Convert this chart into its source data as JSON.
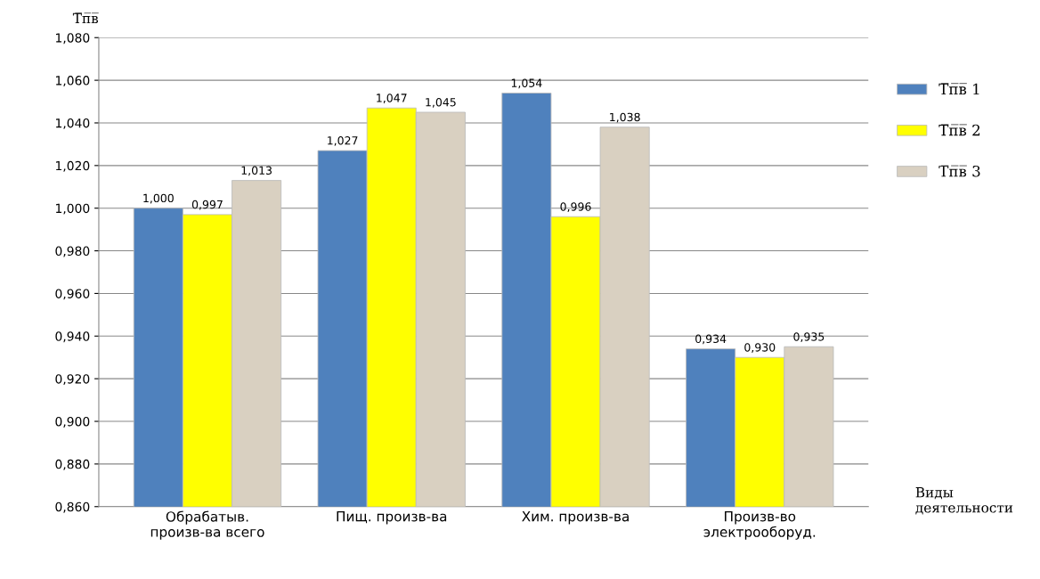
{
  "chart_data": {
    "type": "bar",
    "ylabel": "Т̅п̅в̅",
    "xlabel": "Виды\nдеятельности",
    "categories": [
      "Обрабатыв.\nпроизв-ва всего",
      "Пищ. произв-ва",
      "Хим. произв-ва",
      "Произв-во\nэлектрооборуд."
    ],
    "series": [
      {
        "name": "Т̅п̅в̅ 1",
        "color": "#4f81bd",
        "values": [
          1.0,
          1.027,
          1.054,
          0.934
        ],
        "value_labels": [
          "1,000",
          "1,027",
          "1,054",
          "0,934"
        ]
      },
      {
        "name": "Т̅п̅в̅ 2",
        "color": "#ffff00",
        "values": [
          0.997,
          1.047,
          0.996,
          0.93
        ],
        "value_labels": [
          "0,997",
          "1,047",
          "0,996",
          "0,930"
        ]
      },
      {
        "name": "Т̅п̅в̅ 3",
        "color": "#d9d0c1",
        "values": [
          1.013,
          1.045,
          1.038,
          0.935
        ],
        "value_labels": [
          "1,013",
          "1,045",
          "1,038",
          "0,935"
        ]
      }
    ],
    "ylim": [
      0.86,
      1.08
    ],
    "yticks": [
      {
        "value": 0.86,
        "label": "0,860"
      },
      {
        "value": 0.88,
        "label": "0,880"
      },
      {
        "value": 0.9,
        "label": "0,900"
      },
      {
        "value": 0.92,
        "label": "0,920"
      },
      {
        "value": 0.94,
        "label": "0,940"
      },
      {
        "value": 0.96,
        "label": "0,960"
      },
      {
        "value": 0.98,
        "label": "0,980"
      },
      {
        "value": 1.0,
        "label": "1,000"
      },
      {
        "value": 1.02,
        "label": "1,020"
      },
      {
        "value": 1.04,
        "label": "1,040"
      },
      {
        "value": 1.06,
        "label": "1,060"
      },
      {
        "value": 1.08,
        "label": "1,080"
      }
    ],
    "grid": "y",
    "legend": "right"
  }
}
